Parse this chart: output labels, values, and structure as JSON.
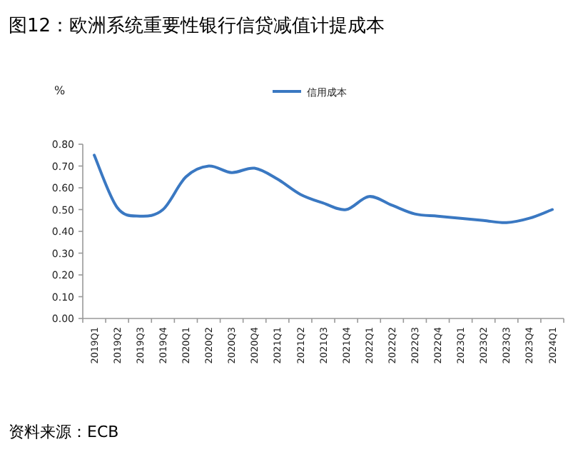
{
  "chart_data": {
    "type": "line",
    "title": "图12：欧洲系统重要性银行信贷减值计提成本",
    "ylabel": "%",
    "categories": [
      "2019Q1",
      "2019Q2",
      "2019Q3",
      "2019Q4",
      "2020Q1",
      "2020Q2",
      "2020Q3",
      "2020Q4",
      "2021Q1",
      "2021Q2",
      "2021Q3",
      "2021Q4",
      "2022Q1",
      "2022Q2",
      "2022Q3",
      "2022Q4",
      "2023Q1",
      "2023Q2",
      "2023Q3",
      "2023Q4",
      "2024Q1"
    ],
    "series": [
      {
        "name": "信用成本",
        "color": "#3a78c2",
        "values": [
          0.75,
          0.51,
          0.47,
          0.5,
          0.65,
          0.7,
          0.67,
          0.69,
          0.64,
          0.57,
          0.53,
          0.5,
          0.56,
          0.52,
          0.48,
          0.47,
          0.46,
          0.45,
          0.44,
          0.46,
          0.5
        ]
      }
    ],
    "ylim": [
      0,
      0.8
    ],
    "yticks": [
      {
        "value": 0,
        "label": "0.00"
      },
      {
        "value": 0.1,
        "label": "0.10"
      },
      {
        "value": 0.2,
        "label": "0.20"
      },
      {
        "value": 0.3,
        "label": "0.30"
      },
      {
        "value": 0.4,
        "label": "0.40"
      },
      {
        "value": 0.5,
        "label": "0.50"
      },
      {
        "value": 0.6,
        "label": "0.60"
      },
      {
        "value": 0.7,
        "label": "0.70"
      },
      {
        "value": 0.8,
        "label": "0.80"
      }
    ],
    "legend": "top",
    "grid": false,
    "marker": "none",
    "line_style": "solid",
    "annotations": [
      "资料来源：ECB"
    ]
  }
}
